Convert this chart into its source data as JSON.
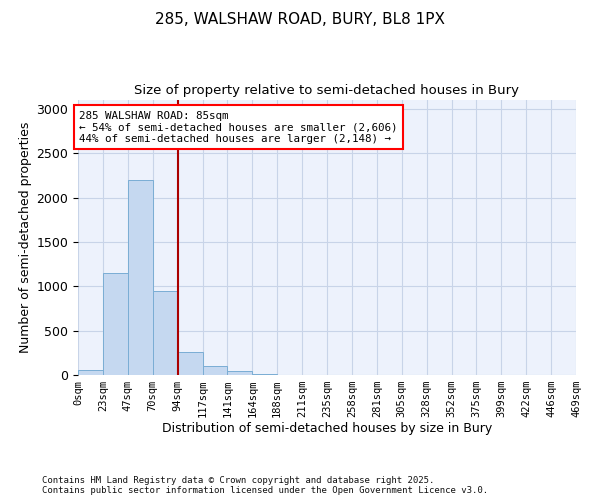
{
  "title1": "285, WALSHAW ROAD, BURY, BL8 1PX",
  "title2": "Size of property relative to semi-detached houses in Bury",
  "xlabel": "Distribution of semi-detached houses by size in Bury",
  "ylabel": "Number of semi-detached properties",
  "bin_labels": [
    "0sqm",
    "23sqm",
    "47sqm",
    "70sqm",
    "94sqm",
    "117sqm",
    "141sqm",
    "164sqm",
    "188sqm",
    "211sqm",
    "235sqm",
    "258sqm",
    "281sqm",
    "305sqm",
    "328sqm",
    "352sqm",
    "375sqm",
    "399sqm",
    "422sqm",
    "446sqm",
    "469sqm"
  ],
  "bar_values": [
    60,
    1150,
    2200,
    950,
    260,
    100,
    40,
    10,
    0,
    0,
    0,
    0,
    0,
    0,
    0,
    0,
    0,
    0,
    0,
    0
  ],
  "bar_color": "#c5d8f0",
  "bar_edge_color": "#7aadd4",
  "vline_color": "#aa0000",
  "vline_bin": 4,
  "annotation_text": "285 WALSHAW ROAD: 85sqm\n← 54% of semi-detached houses are smaller (2,606)\n44% of semi-detached houses are larger (2,148) →",
  "ylim": [
    0,
    3100
  ],
  "yticks": [
    0,
    500,
    1000,
    1500,
    2000,
    2500,
    3000
  ],
  "grid_color": "#c8d4e8",
  "background_color": "#edf2fc",
  "footer_text": "Contains HM Land Registry data © Crown copyright and database right 2025.\nContains public sector information licensed under the Open Government Licence v3.0.",
  "bin_width": 23
}
